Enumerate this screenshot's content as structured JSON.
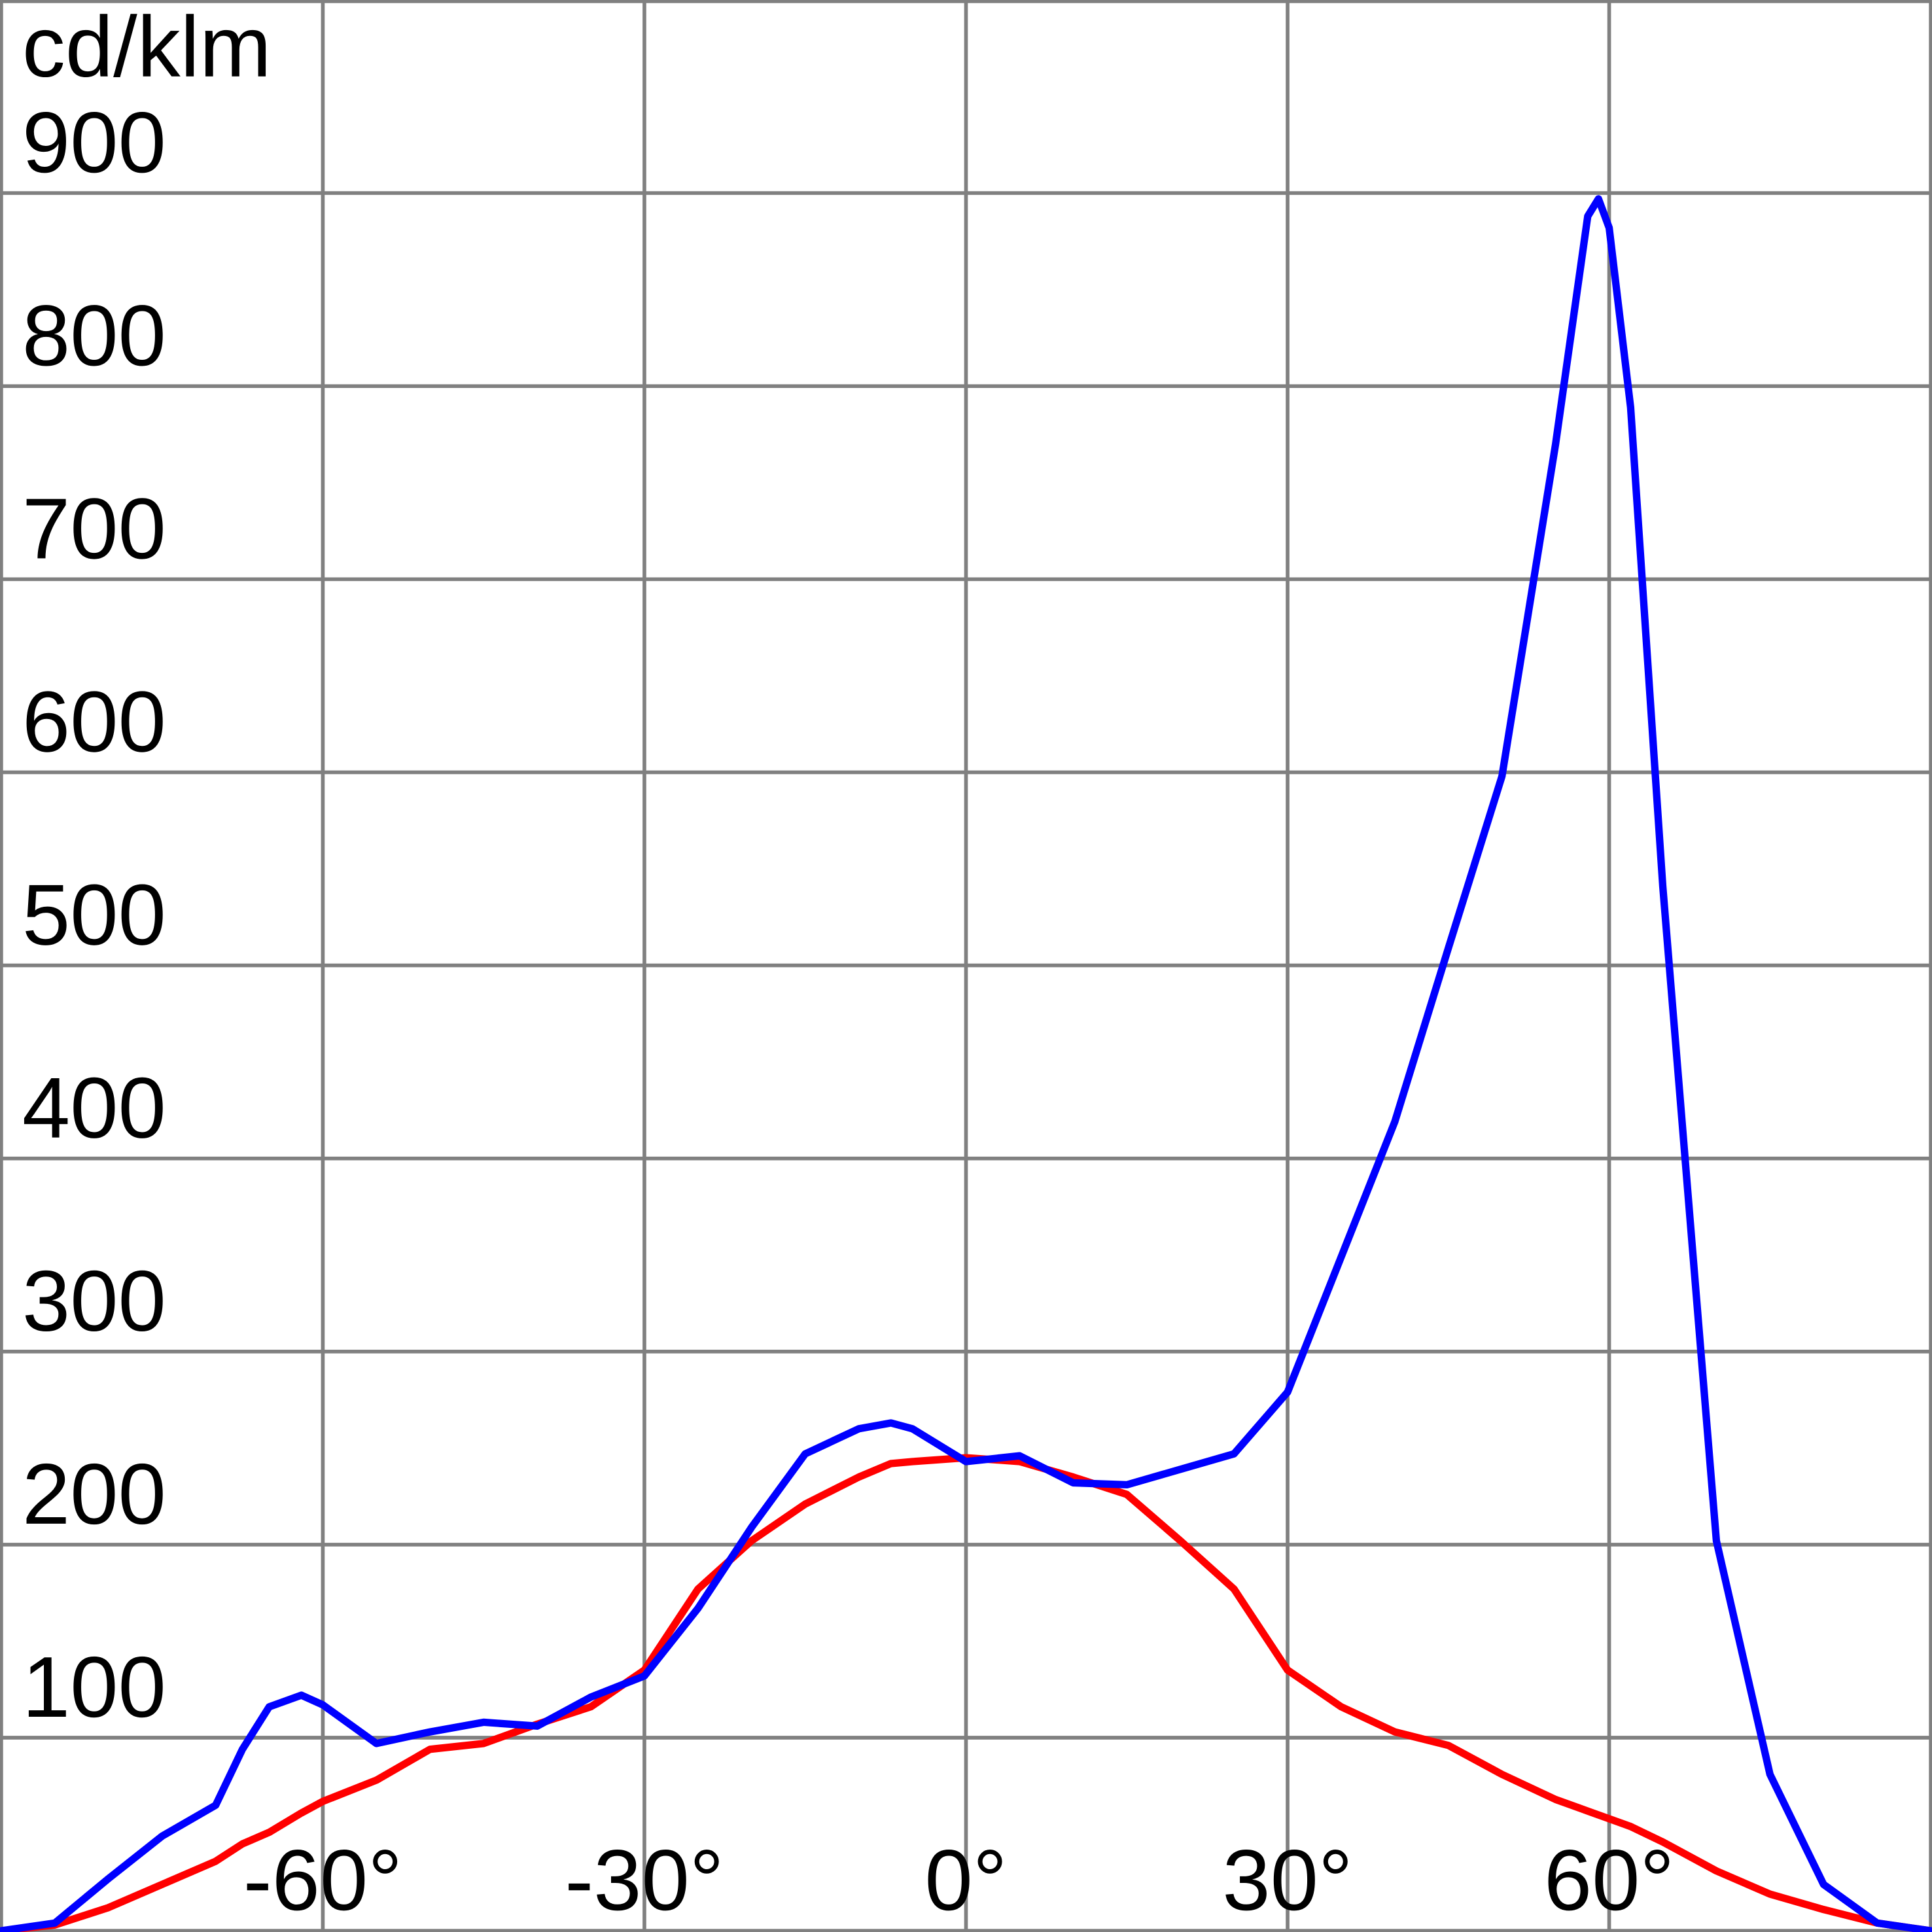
{
  "chart_data": {
    "type": "line",
    "y_label": "cd/klm",
    "x": [
      -90,
      -85,
      -80,
      -75,
      -70,
      -67.5,
      -65,
      -62,
      -60,
      -55,
      -50,
      -45,
      -40,
      -35,
      -30,
      -25,
      -20,
      -15,
      -10,
      -7,
      -5,
      0,
      5,
      10,
      15,
      20,
      25,
      30,
      35,
      40,
      45,
      50,
      55,
      58,
      59,
      60,
      62,
      65,
      70,
      75,
      80,
      85,
      90
    ],
    "series": [
      {
        "color": "#ff0000",
        "values": [
          0,
          3,
          12,
          24,
          36,
          45,
          51,
          61,
          67,
          78,
          94,
          97,
          107,
          116,
          135,
          177,
          202,
          221,
          235,
          242,
          243,
          245,
          243,
          235,
          226,
          202,
          177,
          135,
          116,
          103,
          96,
          81,
          68,
          62,
          60,
          58,
          54,
          46,
          31,
          19,
          11,
          4,
          0
        ]
      },
      {
        "color": "#0000ff",
        "values": [
          0,
          4,
          27,
          49,
          65,
          94,
          116,
          122,
          117,
          97,
          103,
          108,
          106,
          121,
          132,
          167,
          209,
          247,
          260,
          263,
          260,
          243,
          246,
          232,
          231,
          239,
          247,
          279,
          349,
          419,
          509,
          598,
          770,
          888,
          897,
          882,
          789,
          541,
          202,
          81,
          24,
          4,
          0
        ]
      }
    ],
    "xlim": [
      -90,
      90
    ],
    "xticks": [
      {
        "value": -60,
        "label": "-60°"
      },
      {
        "value": -30,
        "label": "-30°"
      },
      {
        "value": 0,
        "label": "0°"
      },
      {
        "value": 30,
        "label": "30°"
      },
      {
        "value": 60,
        "label": "60°"
      }
    ],
    "ylim": [
      0,
      1000
    ],
    "yticks": [
      100,
      200,
      300,
      400,
      500,
      600,
      700,
      800,
      900
    ],
    "grid": true,
    "grid_color": "#808080"
  }
}
